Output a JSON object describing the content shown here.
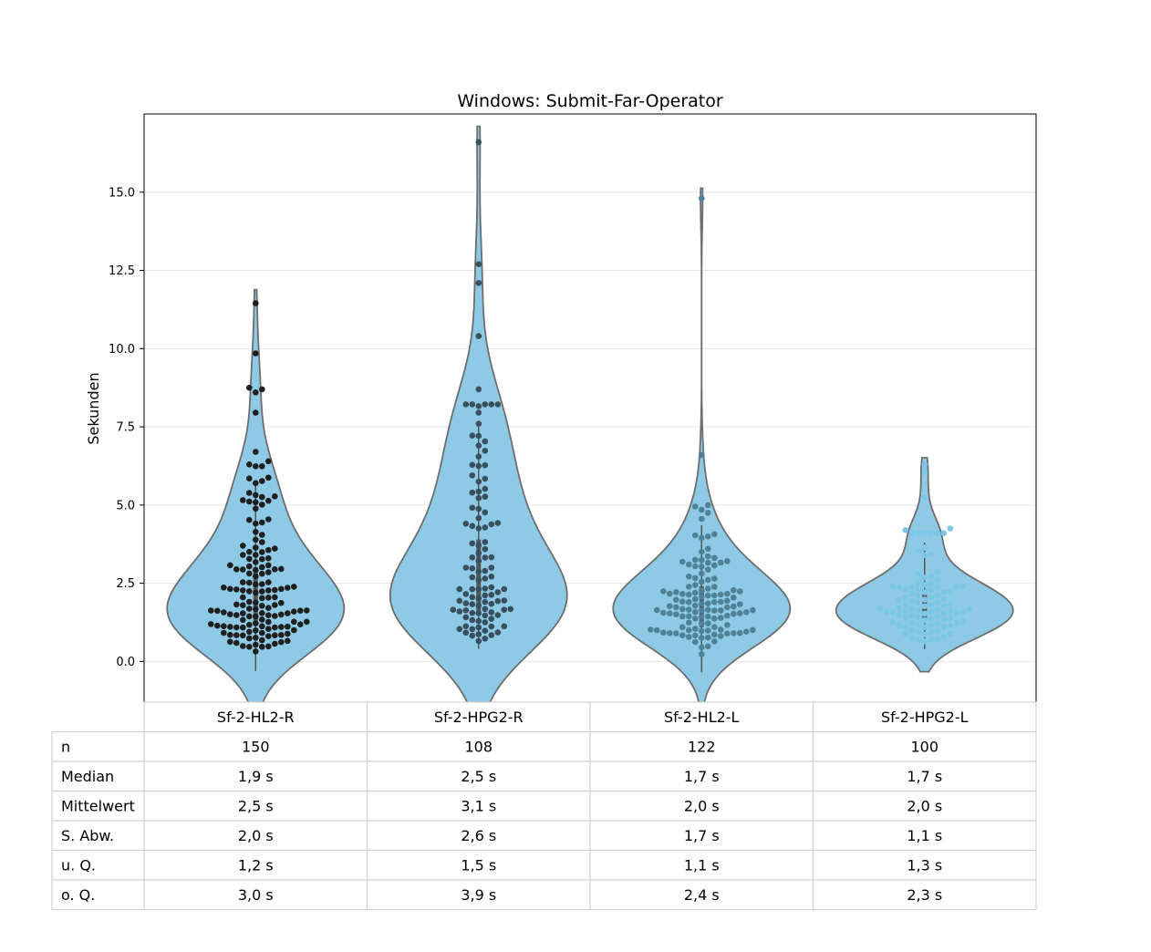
{
  "chart_data": {
    "type": "violin",
    "title": "Windows: Submit-Far-Operator",
    "ylabel": "Sekunden",
    "ylim": [
      -1.3,
      17.5
    ],
    "yticks": [
      "0.0",
      "2.5",
      "5.0",
      "7.5",
      "10.0",
      "12.5",
      "15.0"
    ],
    "grid": "horizontal",
    "categories": [
      "Sf-2-HL2-R",
      "Sf-2-HPG2-R",
      "Sf-2-HL2-L",
      "Sf-2-HPG2-L"
    ],
    "colors": {
      "violin_fill": "#8ecae6",
      "violin_edge": "#6e6e6e",
      "points": [
        "#1f1f1f",
        "#38505e",
        "#4f8197",
        "#7cc6e6"
      ]
    },
    "series": [
      {
        "category": "Sf-2-HL2-R",
        "n": 150,
        "median": 1.9,
        "mean": 2.5,
        "sd": 2.0,
        "q1": 1.2,
        "q3": 3.0,
        "min": -0.3,
        "max": 11.5,
        "outliers": [
          11.45,
          9.85,
          8.75,
          8.7,
          8.6,
          7.95,
          6.7,
          6.4,
          6.3,
          5.85,
          5.7
        ]
      },
      {
        "category": "Sf-2-HPG2-R",
        "n": 108,
        "median": 2.5,
        "mean": 3.1,
        "sd": 2.6,
        "q1": 1.5,
        "q3": 3.9,
        "min": 0.4,
        "max": 16.6,
        "outliers": [
          16.6,
          12.7,
          12.1,
          10.4,
          8.7,
          7.95,
          7.6,
          6.9,
          6.55,
          6.25,
          5.95
        ]
      },
      {
        "category": "Sf-2-HL2-L",
        "n": 122,
        "median": 1.7,
        "mean": 2.0,
        "sd": 1.7,
        "q1": 1.1,
        "q3": 2.4,
        "min": -0.35,
        "max": 14.8,
        "outliers": [
          14.8,
          6.6,
          5.0,
          4.95,
          4.85,
          4.75
        ]
      },
      {
        "category": "Sf-2-HPG2-L",
        "n": 100,
        "median": 1.7,
        "mean": 2.0,
        "sd": 1.1,
        "q1": 1.3,
        "q3": 2.3,
        "min": 0.4,
        "max": 6.3,
        "outliers": [
          6.3,
          6.05,
          5.25,
          4.25,
          4.2
        ]
      }
    ]
  },
  "table": {
    "columns": [
      "Sf-2-HL2-R",
      "Sf-2-HPG2-R",
      "Sf-2-HL2-L",
      "Sf-2-HPG2-L"
    ],
    "rows": [
      {
        "label": "n",
        "values": [
          "150",
          "108",
          "122",
          "100"
        ]
      },
      {
        "label": "Median",
        "values": [
          "1,9 s",
          "2,5 s",
          "1,7 s",
          "1,7 s"
        ]
      },
      {
        "label": "Mittelwert",
        "values": [
          "2,5 s",
          "3,1 s",
          "2,0 s",
          "2,0 s"
        ]
      },
      {
        "label": "S. Abw.",
        "values": [
          "2,0 s",
          "2,6 s",
          "1,7 s",
          "1,1 s"
        ]
      },
      {
        "label": "u. Q.",
        "values": [
          "1,2 s",
          "1,5 s",
          "1,1 s",
          "1,3 s"
        ]
      },
      {
        "label": "o. Q.",
        "values": [
          "3,0 s",
          "3,9 s",
          "2,4 s",
          "2,3 s"
        ]
      }
    ]
  }
}
